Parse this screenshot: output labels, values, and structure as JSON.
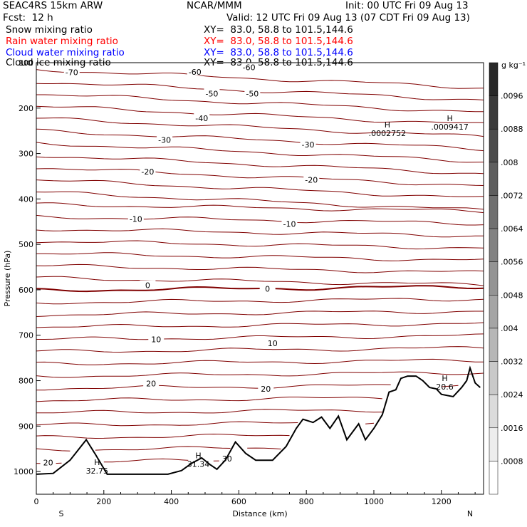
{
  "header": {
    "model": "SEAC4RS 15km ARW",
    "center": "NCAR/MMM",
    "init": "Init: 00 UTC Fri 09 Aug 13",
    "fcst": "Fcst:  12 h",
    "valid": "Valid: 12 UTC Fri 09 Aug 13 (07 CDT Fri 09 Aug 13)",
    "fields": [
      {
        "name": "Snow mixing ratio",
        "xy": "XY=  83.0, 58.8 to 101.5,144.6",
        "color": "#000000"
      },
      {
        "name": "Rain water mixing ratio",
        "xy": "XY=  83.0, 58.8 to 101.5,144.6",
        "color": "#ff0000"
      },
      {
        "name": "Cloud water mixing ratio",
        "xy": "XY=  83.0, 58.8 to 101.5,144.6",
        "color": "#0000ff"
      },
      {
        "name": "Cloud ice mixing ratio",
        "xy": "XY=  83.0, 58.8 to 101.5,144.6",
        "color": "#000000"
      }
    ]
  },
  "chart_data": {
    "type": "contour",
    "xlabel": "Distance (km)",
    "ylabel": "Pressure (hPa)",
    "xlim": [
      0,
      1325
    ],
    "ylim": [
      1050,
      100
    ],
    "xticks": [
      0,
      200,
      400,
      600,
      800,
      1000,
      1200
    ],
    "yticks": [
      1000,
      900,
      800,
      700,
      600,
      500,
      400,
      300,
      200,
      100
    ],
    "direction_labels": {
      "left": "S",
      "right": "N"
    },
    "contour_color": "#800000",
    "terrain_color": "#000000",
    "colorbar": {
      "unit": "g kg⁻¹",
      "labels": [
        ".0096",
        ".0088",
        ".008",
        ".0072",
        ".0064",
        ".0056",
        ".0048",
        ".004",
        ".0032",
        ".0024",
        ".0016",
        ".0008"
      ],
      "scale": "light-to-dark gray"
    },
    "contour_labels": [
      {
        "text": "-70",
        "x": 105,
        "y": 121
      },
      {
        "text": "-60",
        "x": 470,
        "y": 120
      },
      {
        "text": "-60",
        "x": 630,
        "y": 110
      },
      {
        "text": "-50",
        "x": 520,
        "y": 168
      },
      {
        "text": "-50",
        "x": 640,
        "y": 168
      },
      {
        "text": "-40",
        "x": 490,
        "y": 222
      },
      {
        "text": "-30",
        "x": 380,
        "y": 270
      },
      {
        "text": "-30",
        "x": 805,
        "y": 280
      },
      {
        "text": "-20",
        "x": 330,
        "y": 340
      },
      {
        "text": "-20",
        "x": 815,
        "y": 358
      },
      {
        "text": "-10",
        "x": 295,
        "y": 444
      },
      {
        "text": "-10",
        "x": 750,
        "y": 455
      },
      {
        "text": "0",
        "x": 330,
        "y": 590
      },
      {
        "text": "0",
        "x": 685,
        "y": 598
      },
      {
        "text": "10",
        "x": 355,
        "y": 709
      },
      {
        "text": "10",
        "x": 700,
        "y": 718
      },
      {
        "text": "20",
        "x": 340,
        "y": 806
      },
      {
        "text": "20",
        "x": 680,
        "y": 818
      },
      {
        "text": "20",
        "x": 35,
        "y": 980
      },
      {
        "text": "30",
        "x": 565,
        "y": 972
      }
    ],
    "extrema": [
      {
        "mark": "H",
        "value": ".0002752",
        "x": 1040,
        "y": 252
      },
      {
        "mark": "H",
        "value": ".0009417",
        "x": 1225,
        "y": 238
      },
      {
        "mark": "H",
        "value": "32.75",
        "x": 180,
        "y": 995
      },
      {
        "mark": "H",
        "value": "31.34",
        "x": 480,
        "y": 980
      },
      {
        "mark": "H",
        "value": "20.6",
        "x": 1210,
        "y": 810
      }
    ],
    "terrain": [
      [
        0,
        1006
      ],
      [
        50,
        1004
      ],
      [
        100,
        975
      ],
      [
        148,
        930
      ],
      [
        175,
        962
      ],
      [
        210,
        1006
      ],
      [
        300,
        1006
      ],
      [
        390,
        1006
      ],
      [
        430,
        998
      ],
      [
        460,
        982
      ],
      [
        490,
        970
      ],
      [
        515,
        985
      ],
      [
        535,
        995
      ],
      [
        560,
        975
      ],
      [
        590,
        935
      ],
      [
        620,
        960
      ],
      [
        650,
        975
      ],
      [
        700,
        975
      ],
      [
        740,
        945
      ],
      [
        770,
        905
      ],
      [
        790,
        885
      ],
      [
        820,
        892
      ],
      [
        845,
        880
      ],
      [
        870,
        905
      ],
      [
        895,
        878
      ],
      [
        920,
        930
      ],
      [
        955,
        895
      ],
      [
        975,
        930
      ],
      [
        1000,
        905
      ],
      [
        1025,
        875
      ],
      [
        1045,
        825
      ],
      [
        1065,
        820
      ],
      [
        1080,
        795
      ],
      [
        1100,
        790
      ],
      [
        1125,
        790
      ],
      [
        1145,
        800
      ],
      [
        1165,
        815
      ],
      [
        1185,
        818
      ],
      [
        1200,
        830
      ],
      [
        1235,
        835
      ],
      [
        1260,
        815
      ],
      [
        1275,
        800
      ],
      [
        1285,
        772
      ],
      [
        1300,
        805
      ],
      [
        1315,
        815
      ]
    ]
  }
}
